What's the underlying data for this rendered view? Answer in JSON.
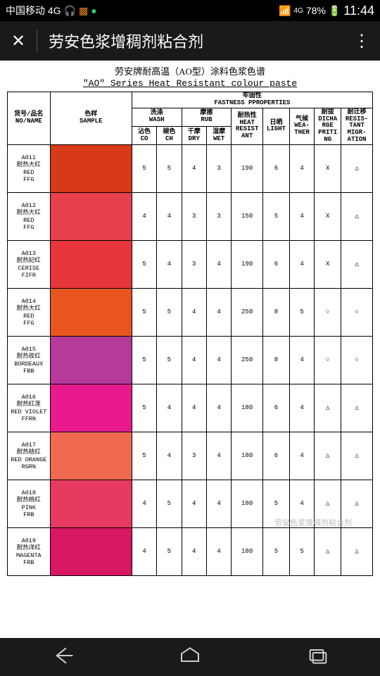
{
  "status": {
    "carrier": "中国移动 4G",
    "battery_pct": "78%",
    "time": "11:44",
    "signal_label": "4G"
  },
  "header": {
    "title": "劳安色浆增稠剂粘合剂"
  },
  "document": {
    "title_cn": "劳安牌耐高温（AO型）涂料色浆色谱",
    "title_en": "\"AO\"  Series Heat Resistant colour paste",
    "watermark": "劳安色浆增稠剂粘合剂",
    "header_group": {
      "fastness_cn": "牢固性",
      "fastness_en": "FASTNESS PPROPERTIES",
      "no_name": "货号/品名\nNO/NAME",
      "sample": "色样\nSAMPLE",
      "wash": "洗涤\nWASH",
      "rub": "摩擦\nRUB",
      "heat": "耐热性\nHEAT\nRESIST\nANT",
      "light": "日晒\nLIGHT",
      "weather": "气候\nWEA-\nTHER",
      "discharge": "耐拔\nDICHA\nRGE\nPRITI\nNG",
      "migration": "耐迁移\nRESIS-\nTANT\nMIGR-\nATION",
      "co": "沾色\nCO",
      "ch": "褪色\nCH",
      "dry": "干摩\nDRY",
      "wet": "湿摩\nWET"
    },
    "rows": [
      {
        "code": "A011",
        "name_cn": "耐热大红",
        "name_en": "RED\nFFG",
        "color": "#d83918",
        "co": "5",
        "ch": "5",
        "dry": "4",
        "wet": "3",
        "heat": "190",
        "light": "6",
        "weather": "4",
        "discharge": "X",
        "migration": "△"
      },
      {
        "code": "A012",
        "name_cn": "耐热大红",
        "name_en": "RED\nFFG",
        "color": "#e8404c",
        "co": "4",
        "ch": "4",
        "dry": "3",
        "wet": "3",
        "heat": "150",
        "light": "5",
        "weather": "4",
        "discharge": "X",
        "migration": "△"
      },
      {
        "code": "A013",
        "name_cn": "耐热妃红",
        "name_en": "CERISE\nFIFR",
        "color": "#e6363b",
        "co": "5",
        "ch": "4",
        "dry": "3",
        "wet": "4",
        "heat": "190",
        "light": "6",
        "weather": "4",
        "discharge": "X",
        "migration": "△"
      },
      {
        "code": "A014",
        "name_cn": "耐热大红",
        "name_en": "RED\nFFG",
        "color": "#e85520",
        "co": "5",
        "ch": "5",
        "dry": "4",
        "wet": "4",
        "heat": "250",
        "light": "8",
        "weather": "5",
        "discharge": "○",
        "migration": "○"
      },
      {
        "code": "A015",
        "name_cn": "耐热玫红",
        "name_en": "BORDEAUX\nFBB",
        "color": "#b63a9a",
        "co": "5",
        "ch": "5",
        "dry": "4",
        "wet": "4",
        "heat": "250",
        "light": "8",
        "weather": "4",
        "discharge": "○",
        "migration": "○"
      },
      {
        "code": "A016",
        "name_cn": "耐热红莲",
        "name_en": "RED VIOLET\nFFRN",
        "color": "#e81a8e",
        "co": "5",
        "ch": "4",
        "dry": "4",
        "wet": "4",
        "heat": "180",
        "light": "6",
        "weather": "4",
        "discharge": "△",
        "migration": "△"
      },
      {
        "code": "A017",
        "name_cn": "耐热桔红",
        "name_en": "RED ORANGE\nRGRN",
        "color": "#f06a52",
        "co": "5",
        "ch": "4",
        "dry": "3",
        "wet": "4",
        "heat": "180",
        "light": "6",
        "weather": "4",
        "discharge": "△",
        "migration": "△"
      },
      {
        "code": "A018",
        "name_cn": "耐热桃红",
        "name_en": "PINK\nFRB",
        "color": "#e83a60",
        "co": "4",
        "ch": "5",
        "dry": "4",
        "wet": "4",
        "heat": "180",
        "light": "5",
        "weather": "4",
        "discharge": "△",
        "migration": "△"
      },
      {
        "code": "A019",
        "name_cn": "耐热洋红",
        "name_en": "MAGENTA\nFRB",
        "color": "#d81862",
        "co": "4",
        "ch": "5",
        "dry": "4",
        "wet": "4",
        "heat": "180",
        "light": "5",
        "weather": "5",
        "discharge": "△",
        "migration": "△"
      }
    ]
  }
}
